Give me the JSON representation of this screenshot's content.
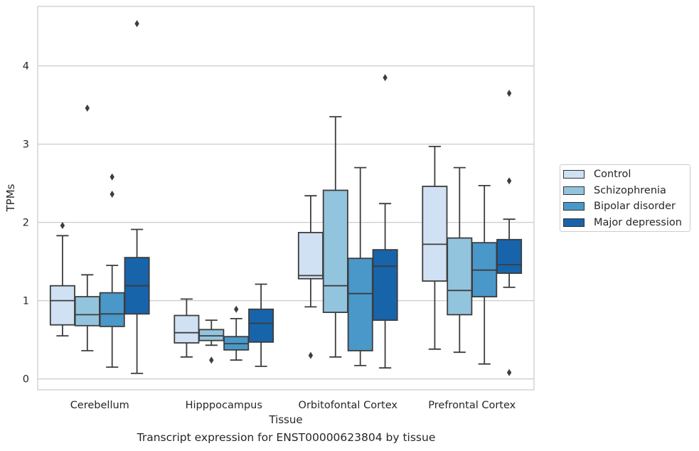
{
  "chart_data": {
    "type": "boxplot",
    "xlabel": "Tissue",
    "ylabel": "TPMs",
    "caption": "Transcript expression for ENST00000623804 by tissue",
    "ylim": [
      -0.14,
      4.76
    ],
    "yticks": [
      0,
      1,
      2,
      3,
      4
    ],
    "grid": "horizontal",
    "legend_position": "right",
    "categories": [
      "Cerebellum",
      "Hipppocampus",
      "Orbitofontal Cortex",
      "Prefrontal Cortex"
    ],
    "series": [
      {
        "name": "Control",
        "color": "#cfe1f2",
        "boxes": [
          {
            "whislo": 0.55,
            "q1": 0.69,
            "med": 1.0,
            "q3": 1.19,
            "whishi": 1.83,
            "fliers": [
              1.96
            ]
          },
          {
            "whislo": 0.28,
            "q1": 0.46,
            "med": 0.59,
            "q3": 0.81,
            "whishi": 1.02,
            "fliers": []
          },
          {
            "whislo": 0.92,
            "q1": 1.28,
            "med": 1.32,
            "q3": 1.87,
            "whishi": 2.34,
            "fliers": [
              0.3
            ]
          },
          {
            "whislo": 0.38,
            "q1": 1.25,
            "med": 1.72,
            "q3": 2.46,
            "whishi": 2.97,
            "fliers": []
          }
        ]
      },
      {
        "name": "Schizophrenia",
        "color": "#93c4de",
        "boxes": [
          {
            "whislo": 0.36,
            "q1": 0.68,
            "med": 0.82,
            "q3": 1.05,
            "whishi": 1.33,
            "fliers": [
              3.46
            ]
          },
          {
            "whislo": 0.43,
            "q1": 0.49,
            "med": 0.55,
            "q3": 0.63,
            "whishi": 0.75,
            "fliers": [
              0.24
            ]
          },
          {
            "whislo": 0.28,
            "q1": 0.85,
            "med": 1.19,
            "q3": 2.41,
            "whishi": 3.35,
            "fliers": []
          },
          {
            "whislo": 0.34,
            "q1": 0.82,
            "med": 1.13,
            "q3": 1.8,
            "whishi": 2.7,
            "fliers": []
          }
        ]
      },
      {
        "name": "Bipolar disorder",
        "color": "#4a98c9",
        "boxes": [
          {
            "whislo": 0.15,
            "q1": 0.67,
            "med": 0.83,
            "q3": 1.1,
            "whishi": 1.45,
            "fliers": [
              2.58,
              2.36
            ]
          },
          {
            "whislo": 0.24,
            "q1": 0.37,
            "med": 0.45,
            "q3": 0.54,
            "whishi": 0.77,
            "fliers": [
              0.89
            ]
          },
          {
            "whislo": 0.17,
            "q1": 0.36,
            "med": 1.09,
            "q3": 1.54,
            "whishi": 2.7,
            "fliers": []
          },
          {
            "whislo": 0.19,
            "q1": 1.05,
            "med": 1.39,
            "q3": 1.74,
            "whishi": 2.47,
            "fliers": []
          }
        ]
      },
      {
        "name": "Major depression",
        "color": "#1764ab",
        "boxes": [
          {
            "whislo": 0.07,
            "q1": 0.83,
            "med": 1.19,
            "q3": 1.55,
            "whishi": 1.91,
            "fliers": [
              4.54
            ]
          },
          {
            "whislo": 0.16,
            "q1": 0.47,
            "med": 0.71,
            "q3": 0.89,
            "whishi": 1.21,
            "fliers": []
          },
          {
            "whislo": 0.14,
            "q1": 0.75,
            "med": 1.44,
            "q3": 1.65,
            "whishi": 2.24,
            "fliers": [
              3.85
            ]
          },
          {
            "whislo": 1.17,
            "q1": 1.35,
            "med": 1.46,
            "q3": 1.78,
            "whishi": 2.04,
            "fliers": [
              3.65,
              2.53,
              0.08
            ]
          }
        ]
      }
    ]
  }
}
